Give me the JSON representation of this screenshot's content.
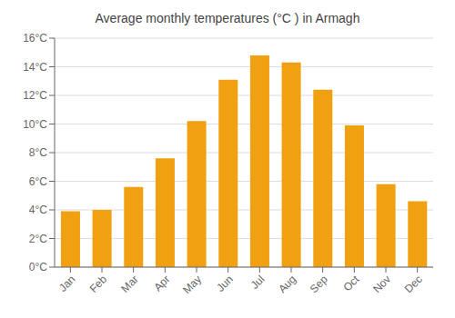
{
  "chart_data": {
    "type": "bar",
    "title": "Average monthly temperatures (°C ) in Armagh",
    "categories": [
      "Jan",
      "Feb",
      "Mar",
      "Apr",
      "May",
      "Jun",
      "Jul",
      "Aug",
      "Sep",
      "Oct",
      "Nov",
      "Dec"
    ],
    "values": [
      3.9,
      4.0,
      5.6,
      7.6,
      10.2,
      13.1,
      14.8,
      14.3,
      12.4,
      9.9,
      5.8,
      4.6
    ],
    "color": "#F0A010",
    "ylim": [
      0,
      16
    ],
    "yticks": [
      {
        "value": 0,
        "label": "0°C"
      },
      {
        "value": 2,
        "label": "2°C"
      },
      {
        "value": 4,
        "label": "4°C"
      },
      {
        "value": 6,
        "label": "6°C"
      },
      {
        "value": 8,
        "label": "8°C"
      },
      {
        "value": 10,
        "label": "10°C"
      },
      {
        "value": 12,
        "label": "12°C"
      },
      {
        "value": 14,
        "label": "14°C"
      },
      {
        "value": 16,
        "label": "16°C"
      }
    ],
    "grid": true
  }
}
